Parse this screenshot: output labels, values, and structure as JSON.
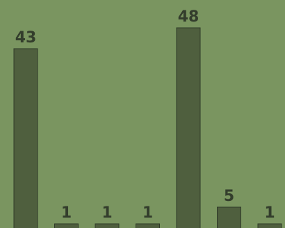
{
  "chart_data": {
    "type": "bar",
    "categories": [
      "",
      "",
      "",
      "",
      "",
      "",
      ""
    ],
    "values": [
      43,
      1,
      1,
      1,
      48,
      5,
      1
    ],
    "data_labels": [
      "43",
      "1",
      "1",
      "1",
      "48",
      "5",
      "1"
    ],
    "title": "",
    "xlabel": "",
    "ylabel": "",
    "ylim": [
      0,
      48
    ],
    "grid": false,
    "legend": "none"
  },
  "colors": {
    "background": "#7a9560",
    "bar_fill": "#4f5f3e",
    "bar_stroke": "#2f3a28",
    "label_text": "#333d2c"
  }
}
